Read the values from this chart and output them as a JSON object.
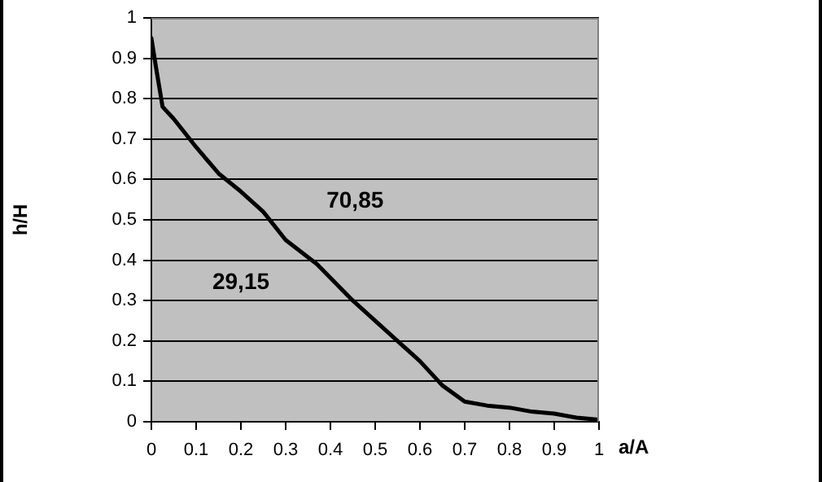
{
  "chart_data": {
    "type": "line",
    "xlabel": "a/A",
    "ylabel": "h/H",
    "x": [
      0,
      0.01,
      0.025,
      0.05,
      0.1,
      0.15,
      0.2,
      0.25,
      0.3,
      0.37,
      0.45,
      0.55,
      0.6,
      0.65,
      0.7,
      0.75,
      0.8,
      0.85,
      0.9,
      0.95,
      1
    ],
    "series": [
      {
        "color": "#000000",
        "values": [
          0.95,
          0.88,
          0.78,
          0.75,
          0.68,
          0.615,
          0.57,
          0.52,
          0.45,
          0.39,
          0.3,
          0.2,
          0.15,
          0.09,
          0.05,
          0.04,
          0.035,
          0.025,
          0.02,
          0.01,
          0.005
        ]
      }
    ],
    "xlim": [
      0,
      1
    ],
    "xticks": [
      0,
      0.1,
      0.2,
      0.3,
      0.4,
      0.5,
      0.6,
      0.7,
      0.8,
      0.9,
      1
    ],
    "ylim": [
      0,
      1
    ],
    "yticks": [
      0,
      0.1,
      0.2,
      0.3,
      0.4,
      0.5,
      0.6,
      0.7,
      0.8,
      0.9,
      1
    ],
    "grid": "y",
    "legend": false,
    "marker": "none",
    "line_style": "solid",
    "annotations": [
      "70,85",
      "29,15"
    ]
  }
}
